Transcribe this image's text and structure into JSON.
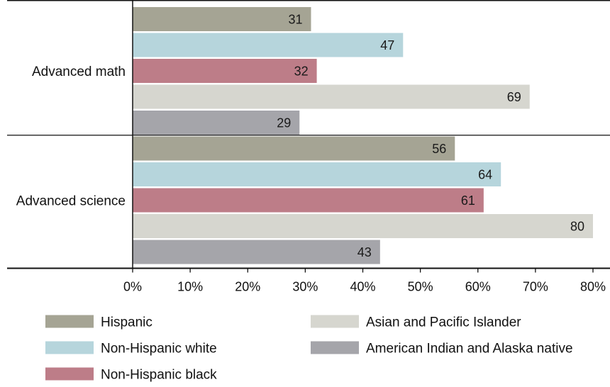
{
  "chart_data": {
    "type": "bar",
    "orientation": "horizontal",
    "categories": [
      "Advanced math",
      "Advanced science"
    ],
    "series": [
      {
        "name": "Hispanic",
        "color": "#a5a494",
        "values": [
          31,
          56
        ]
      },
      {
        "name": "Non-Hispanic white",
        "color": "#b6d5dc",
        "values": [
          47,
          64
        ]
      },
      {
        "name": "Non-Hispanic black",
        "color": "#bd7d88",
        "values": [
          32,
          61
        ]
      },
      {
        "name": "Asian and Pacific Islander",
        "color": "#d6d6cf",
        "values": [
          69,
          80
        ]
      },
      {
        "name": "American Indian and Alaska native",
        "color": "#a5a5aa",
        "values": [
          29,
          43
        ]
      }
    ],
    "xlim": [
      0,
      80
    ],
    "x_ticks": [
      "0%",
      "10%",
      "20%",
      "30%",
      "40%",
      "50%",
      "60%",
      "70%",
      "80%"
    ],
    "grid": false,
    "legend_position": "bottom"
  }
}
